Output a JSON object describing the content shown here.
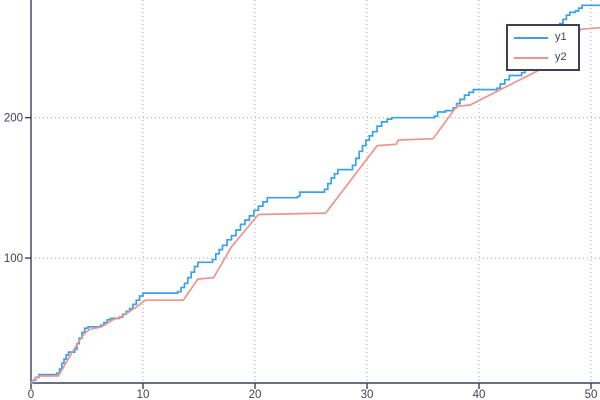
{
  "chart_data": {
    "type": "line",
    "title": "",
    "xlabel": "",
    "ylabel": "",
    "xlim": [
      0,
      50.8
    ],
    "ylim": [
      11,
      283.8
    ],
    "x_ticks": [
      0,
      10,
      20,
      30,
      40,
      50
    ],
    "y_ticks": [
      100,
      200
    ],
    "grid": "dotted",
    "grid_color": "#a9a9a9",
    "axis_color": "#3f3f5a",
    "legend_position": "top-right",
    "series": [
      {
        "name": "y1",
        "color": "#3da0e8",
        "interpolation": "step-after",
        "points": [
          [
            0,
            11
          ],
          [
            0.2,
            13
          ],
          [
            0.4,
            15
          ],
          [
            0.7,
            17
          ],
          [
            2.3,
            18
          ],
          [
            2.55,
            21
          ],
          [
            2.75,
            25
          ],
          [
            2.95,
            28
          ],
          [
            3.15,
            31
          ],
          [
            3.35,
            33
          ],
          [
            3.9,
            35
          ],
          [
            4.1,
            39
          ],
          [
            4.3,
            43
          ],
          [
            4.55,
            47
          ],
          [
            4.8,
            50
          ],
          [
            5.1,
            51
          ],
          [
            6.2,
            52
          ],
          [
            6.5,
            54
          ],
          [
            6.8,
            56
          ],
          [
            7.1,
            57
          ],
          [
            7.9,
            58
          ],
          [
            8.2,
            60
          ],
          [
            8.5,
            62
          ],
          [
            8.8,
            64
          ],
          [
            9.1,
            67
          ],
          [
            9.4,
            70
          ],
          [
            9.7,
            73
          ],
          [
            10.0,
            75
          ],
          [
            13.1,
            76
          ],
          [
            13.4,
            79
          ],
          [
            13.7,
            82
          ],
          [
            14.0,
            86
          ],
          [
            14.3,
            90
          ],
          [
            14.6,
            94
          ],
          [
            14.9,
            97
          ],
          [
            16.2,
            99
          ],
          [
            16.5,
            103
          ],
          [
            16.8,
            106
          ],
          [
            17.1,
            109
          ],
          [
            17.5,
            113
          ],
          [
            17.9,
            116
          ],
          [
            18.3,
            120
          ],
          [
            18.7,
            124
          ],
          [
            19.1,
            127
          ],
          [
            19.5,
            130
          ],
          [
            19.9,
            134
          ],
          [
            20.3,
            137
          ],
          [
            20.7,
            140
          ],
          [
            21.1,
            143
          ],
          [
            23.8,
            144
          ],
          [
            24.0,
            147
          ],
          [
            26.2,
            149
          ],
          [
            26.5,
            153
          ],
          [
            26.8,
            157
          ],
          [
            27.1,
            160
          ],
          [
            27.4,
            163
          ],
          [
            28.7,
            166
          ],
          [
            29.0,
            171
          ],
          [
            29.3,
            176
          ],
          [
            29.6,
            180
          ],
          [
            29.9,
            184
          ],
          [
            30.2,
            187
          ],
          [
            30.5,
            190
          ],
          [
            30.9,
            194
          ],
          [
            31.3,
            197
          ],
          [
            31.8,
            199
          ],
          [
            32.2,
            200
          ],
          [
            36.0,
            201
          ],
          [
            36.3,
            204
          ],
          [
            37.0,
            205
          ],
          [
            37.7,
            207
          ],
          [
            38.0,
            210
          ],
          [
            38.3,
            213
          ],
          [
            38.7,
            216
          ],
          [
            39.1,
            218
          ],
          [
            39.5,
            220
          ],
          [
            41.6,
            221
          ],
          [
            41.9,
            224
          ],
          [
            42.3,
            227
          ],
          [
            42.7,
            230
          ],
          [
            43.8,
            232
          ],
          [
            44.1,
            234
          ],
          [
            44.5,
            238
          ],
          [
            44.9,
            242
          ],
          [
            45.3,
            246
          ],
          [
            45.7,
            250
          ],
          [
            46.1,
            254
          ],
          [
            46.5,
            259
          ],
          [
            46.9,
            263
          ],
          [
            47.2,
            267
          ],
          [
            47.5,
            270
          ],
          [
            47.8,
            273
          ],
          [
            48.1,
            275
          ],
          [
            48.6,
            276
          ],
          [
            48.9,
            278
          ],
          [
            49.2,
            280
          ],
          [
            50.8,
            280
          ]
        ]
      },
      {
        "name": "y2",
        "color": "#ef958c",
        "interpolation": "linear",
        "points": [
          [
            0,
            11
          ],
          [
            0.35,
            14
          ],
          [
            0.7,
            16
          ],
          [
            2.45,
            16
          ],
          [
            3.1,
            25
          ],
          [
            3.7,
            33
          ],
          [
            4.3,
            41
          ],
          [
            4.75,
            46
          ],
          [
            5.2,
            49
          ],
          [
            6.3,
            51
          ],
          [
            7.3,
            56
          ],
          [
            8.0,
            58
          ],
          [
            9.4,
            65
          ],
          [
            10.2,
            70
          ],
          [
            13.6,
            70
          ],
          [
            14.9,
            85
          ],
          [
            16.3,
            86
          ],
          [
            17.9,
            108
          ],
          [
            20.3,
            131
          ],
          [
            26.3,
            132
          ],
          [
            30.9,
            180
          ],
          [
            32.6,
            181
          ],
          [
            32.8,
            184
          ],
          [
            35.9,
            185
          ],
          [
            38.0,
            208
          ],
          [
            39.2,
            209
          ],
          [
            45.4,
            234
          ],
          [
            47.2,
            248
          ],
          [
            48.9,
            261
          ],
          [
            49.1,
            263
          ],
          [
            50.8,
            264
          ]
        ]
      }
    ]
  },
  "legend": {
    "items": [
      {
        "label": "y1"
      },
      {
        "label": "y2"
      }
    ]
  }
}
